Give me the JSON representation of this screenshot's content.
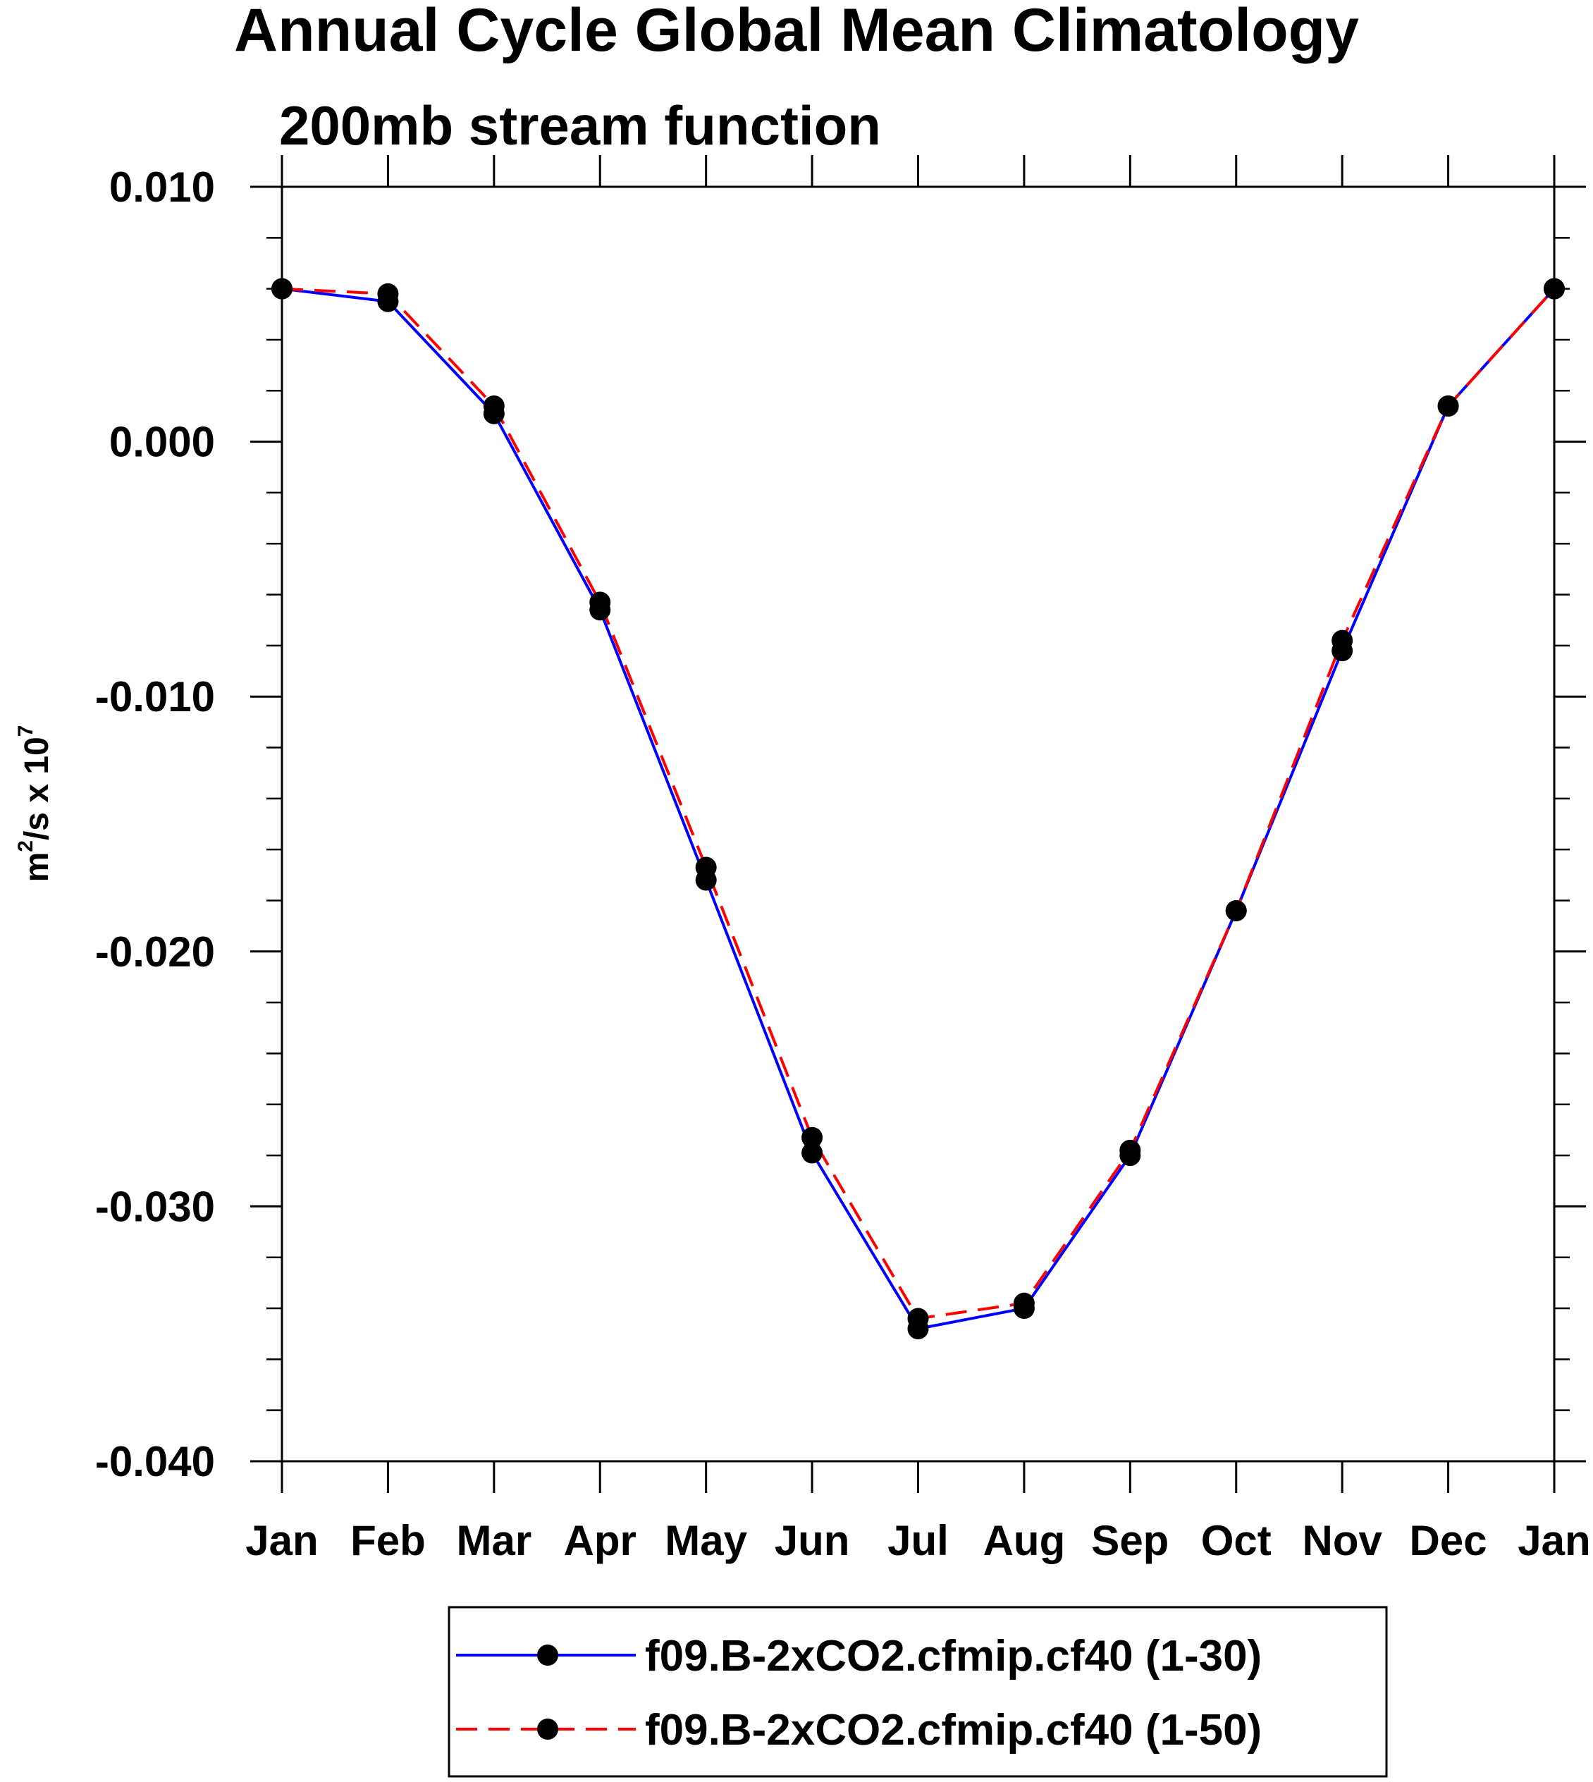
{
  "chart_data": {
    "type": "line",
    "title": "Annual Cycle Global Mean Climatology",
    "subtitle": "200mb stream function",
    "ylabel": {
      "base": "m",
      "sup1": "2",
      "mid": "/s x 10",
      "sup2": "7"
    },
    "xlabel": "",
    "categories": [
      "Jan",
      "Feb",
      "Mar",
      "Apr",
      "May",
      "Jun",
      "Jul",
      "Aug",
      "Sep",
      "Oct",
      "Nov",
      "Dec",
      "Jan"
    ],
    "ylim": [
      -0.04,
      0.01
    ],
    "yticks": [
      0.01,
      0.0,
      -0.01,
      -0.02,
      -0.03,
      -0.04
    ],
    "ytick_labels": [
      "0.010",
      "0.000",
      "-0.010",
      "-0.020",
      "-0.030",
      "-0.040"
    ],
    "y_minor_step": 0.002,
    "grid": false,
    "legend_position": "bottom",
    "series": [
      {
        "name": "f09.B-2xCO2.cfmip.cf40 (1-30)",
        "color": "#0000ff",
        "dash": "solid",
        "marker": "filled-circle",
        "values": [
          0.006,
          0.0055,
          0.0011,
          -0.0066,
          -0.0172,
          -0.0279,
          -0.0348,
          -0.034,
          -0.028,
          -0.0184,
          -0.0082,
          0.0014,
          0.006
        ]
      },
      {
        "name": "f09.B-2xCO2.cfmip.cf40 (1-50)",
        "color": "#ff0000",
        "dash": "dashed",
        "marker": "filled-circle",
        "values": [
          0.006,
          0.0058,
          0.0014,
          -0.0063,
          -0.0167,
          -0.0273,
          -0.0344,
          -0.0338,
          -0.0278,
          -0.0184,
          -0.0078,
          0.0014,
          0.006
        ]
      }
    ]
  }
}
